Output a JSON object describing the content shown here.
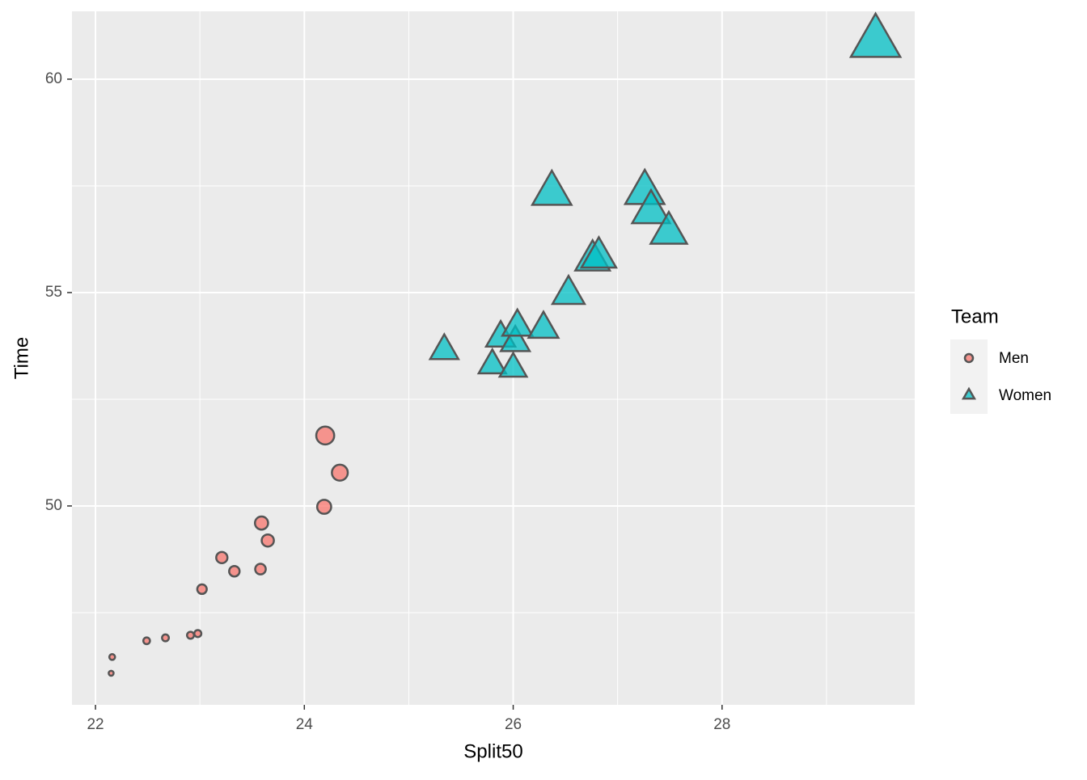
{
  "chart_data": {
    "type": "scatter",
    "x_label": "Split50",
    "y_label": "Time",
    "xlim": [
      21.775,
      29.845
    ],
    "ylim": [
      45.34,
      61.59
    ],
    "xticks": [
      22,
      24,
      26,
      28
    ],
    "yticks": [
      50,
      55,
      60
    ],
    "grid": true,
    "legend_title": "Team",
    "legend_position": "right",
    "series": [
      {
        "name": "Men",
        "color": "#F8766D",
        "shape": "circle",
        "x": [
          22.15,
          22.16,
          22.49,
          22.67,
          22.91,
          22.98,
          23.02,
          23.21,
          23.33,
          23.58,
          23.59,
          23.65,
          24.19,
          24.2,
          24.34
        ],
        "values": [
          46.08,
          46.46,
          46.84,
          46.91,
          46.97,
          47.01,
          48.05,
          48.79,
          48.47,
          48.52,
          49.6,
          49.19,
          49.98,
          51.65,
          50.78
        ]
      },
      {
        "name": "Women",
        "color": "#00BFC4",
        "shape": "triangle",
        "x": [
          25.34,
          25.8,
          25.88,
          26.0,
          26.02,
          26.04,
          26.29,
          26.53,
          26.76,
          26.82,
          26.37,
          27.26,
          27.32,
          27.49,
          29.47
        ],
        "values": [
          53.64,
          53.3,
          53.94,
          53.22,
          53.83,
          54.2,
          54.15,
          54.96,
          55.76,
          55.83,
          57.33,
          57.35,
          56.89,
          56.4,
          60.87
        ]
      }
    ]
  }
}
